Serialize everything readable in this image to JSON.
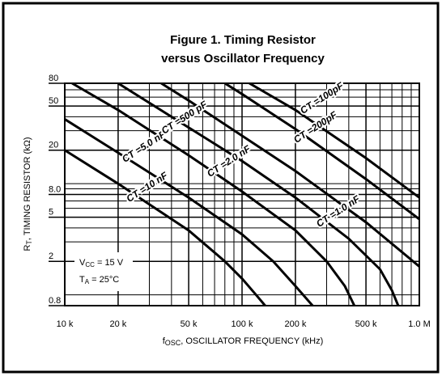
{
  "chart_data": {
    "type": "line",
    "title": [
      "Figure 1. Timing Resistor",
      "versus Oscillator Frequency"
    ],
    "x_label": [
      "f",
      "OSC",
      ", OSCILLATOR FREQUENCY (kHz)"
    ],
    "y_label": [
      "R",
      "T",
      ", TIMING RESISTOR (kΩ)"
    ],
    "annotations": [
      [
        "V",
        "CC",
        " = 15 V"
      ],
      [
        "T",
        "A",
        " = 25°C"
      ]
    ],
    "log_x": true,
    "log_y": true,
    "grid": true,
    "color": "#000000",
    "xlim": [
      10,
      1000
    ],
    "ylim": [
      0.8,
      80
    ],
    "xticks": [
      {
        "value": 10,
        "label": "10 k"
      },
      {
        "value": 20,
        "label": "20 k"
      },
      {
        "value": 50,
        "label": "50 k"
      },
      {
        "value": 100,
        "label": "100 k"
      },
      {
        "value": 200,
        "label": "200 k"
      },
      {
        "value": 500,
        "label": "500 k"
      },
      {
        "value": 1000,
        "label": "1.0 M"
      }
    ],
    "yticks": [
      0.8,
      2.0,
      5.0,
      {
        "value": 8,
        "label": "8.0"
      },
      20,
      50,
      80
    ],
    "xminor": [
      30,
      40,
      60,
      70,
      80,
      90,
      300,
      400,
      600,
      700,
      800,
      900
    ],
    "yminor": [
      1,
      3,
      4,
      6,
      7,
      9,
      10,
      30,
      40,
      60,
      70
    ],
    "series": [
      {
        "name": "CT =10 nF",
        "x": [
          10,
          20,
          50,
          80,
          100,
          120,
          135
        ],
        "values": [
          20,
          10,
          3.8,
          2.0,
          1.4,
          1.0,
          0.8
        ]
      },
      {
        "name": "CT =5.0 nF",
        "x": [
          10,
          20,
          50,
          100,
          150,
          200,
          250
        ],
        "values": [
          38,
          19,
          7.5,
          3.5,
          2.0,
          1.2,
          0.8
        ]
      },
      {
        "name": "CT =2.0 nF",
        "x": [
          11,
          20,
          50,
          100,
          200,
          300,
          380,
          430
        ],
        "values": [
          80,
          46,
          18,
          8.5,
          3.8,
          2.0,
          1.2,
          0.8
        ]
      },
      {
        "name": "CT =1.0 nF",
        "x": [
          20,
          50,
          100,
          200,
          400,
          600,
          700,
          760
        ],
        "values": [
          80,
          32,
          16,
          7.5,
          3.2,
          1.7,
          1.1,
          0.8
        ]
      },
      {
        "name": "CT =500 pF",
        "x": [
          35,
          50,
          100,
          200,
          500,
          1000
        ],
        "values": [
          80,
          56,
          27,
          13,
          4.5,
          1.8
        ]
      },
      {
        "name": "CT =200pF",
        "x": [
          80,
          100,
          200,
          500,
          1000
        ],
        "values": [
          80,
          64,
          31,
          11,
          4.8
        ]
      },
      {
        "name": "CT =100pF",
        "x": [
          110,
          200,
          500,
          1000
        ],
        "values": [
          80,
          46,
          17,
          7.5
        ]
      }
    ]
  }
}
